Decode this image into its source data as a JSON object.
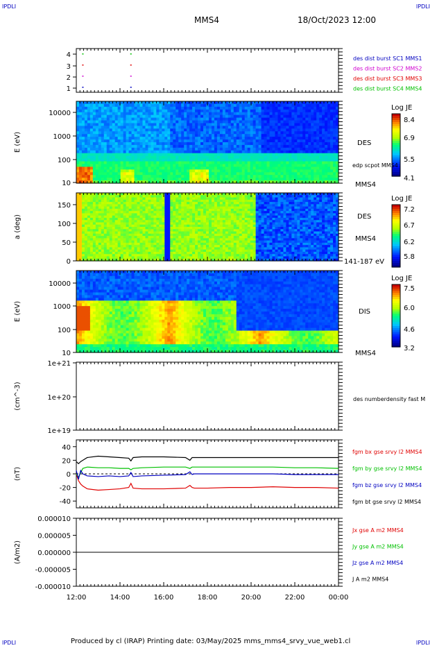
{
  "corner_label": "IPDLI",
  "header": {
    "mission": "MMS4",
    "datetime": "18/Oct/2023 12:00"
  },
  "footer": {
    "credit": "Produced by cl (IRAP)   Printing date: 03/May/2025   mms_mms4_srvy_vue_web1.cl"
  },
  "colors": {
    "red": "#e00000",
    "green": "#00c000",
    "blue": "#0000c0",
    "magenta": "#d000d0",
    "black": "#000000"
  },
  "chart_data": [
    {
      "type": "scatter",
      "name": "burst-availability",
      "yticks": [
        "1",
        "2",
        "3",
        "4"
      ],
      "legend": [
        {
          "label": "des dist burst SC1 MMS1",
          "color": "#0000c0"
        },
        {
          "label": "des dist burst SC2 MMS2",
          "color": "#d000d0"
        },
        {
          "label": "des dist burst SC3 MMS3",
          "color": "#e00000"
        },
        {
          "label": "des dist burst SC4 MMS4",
          "color": "#00c000"
        }
      ],
      "points_hours": [
        0.3,
        2.5
      ]
    },
    {
      "type": "heatmap",
      "name": "des-energy",
      "ylabel": "E (eV)",
      "yticks": [
        "10000",
        "1000",
        "100",
        "10"
      ],
      "yscale": "log",
      "ylim": [
        10,
        30000
      ],
      "right_labels": [
        "DES",
        "edp scpot MMS4",
        "MMS4"
      ],
      "colorbar": {
        "title": "Log JE",
        "ticks": [
          "8.4",
          "6.9",
          "5.5",
          "4.1"
        ]
      }
    },
    {
      "type": "heatmap",
      "name": "des-pitch-angle",
      "ylabel": "a (deg)",
      "yticks": [
        "150",
        "100",
        "50",
        "0"
      ],
      "ylim": [
        0,
        180
      ],
      "right_labels": [
        "DES",
        "MMS4",
        "141-187 eV"
      ],
      "colorbar": {
        "title": "Log JE",
        "ticks": [
          "7.2",
          "6.7",
          "6.2",
          "5.8"
        ]
      }
    },
    {
      "type": "heatmap",
      "name": "dis-energy",
      "ylabel": "E (eV)",
      "yticks": [
        "10000",
        "1000",
        "100",
        "10"
      ],
      "yscale": "log",
      "ylim": [
        10,
        30000
      ],
      "right_labels": [
        "DIS",
        "MMS4"
      ],
      "colorbar": {
        "title": "Log JE",
        "ticks": [
          "7.5",
          "6.0",
          "4.6",
          "3.2"
        ]
      }
    },
    {
      "type": "line",
      "name": "density",
      "ylabel": "(cm^-3)",
      "yticks": [
        "1e+21",
        "1e+20",
        "1e+19"
      ],
      "right_labels": [
        "des numberdensity fast M"
      ]
    },
    {
      "type": "line",
      "name": "magnetic-field",
      "ylabel": "(nT)",
      "yticks": [
        "40",
        "20",
        "0",
        "-20",
        "-40"
      ],
      "ylim": [
        -50,
        50
      ],
      "x_hours": [
        0,
        0.1,
        0.2,
        0.3,
        0.5,
        1,
        1.5,
        2,
        2.4,
        2.5,
        2.6,
        3,
        4,
        5,
        5.2,
        5.3,
        5.4,
        6,
        7,
        8,
        9,
        10,
        11,
        12
      ],
      "series": [
        {
          "name": "fgm bx gse srvy l2 MMS4",
          "color": "#e00000",
          "values": [
            0,
            -10,
            -15,
            -18,
            -22,
            -24,
            -23,
            -22,
            -20,
            -14,
            -21,
            -22,
            -22,
            -21,
            -17,
            -20,
            -21,
            -21,
            -20,
            -20,
            -19,
            -20,
            -20,
            -21
          ]
        },
        {
          "name": "fgm by gse srvy l2 MMS4",
          "color": "#00c000",
          "values": [
            0,
            -5,
            2,
            8,
            10,
            9,
            9,
            8,
            8,
            6,
            8,
            9,
            10,
            10,
            8,
            10,
            10,
            10,
            10,
            10,
            10,
            9,
            9,
            8
          ]
        },
        {
          "name": "fgm bz gse srvy l2 MMS4",
          "color": "#0000c0",
          "values": [
            5,
            -8,
            5,
            0,
            -3,
            -4,
            -3,
            -4,
            -3,
            2,
            -4,
            -3,
            -2,
            -1,
            3,
            -1,
            0,
            0,
            0,
            0,
            0,
            -1,
            -1,
            -1
          ]
        },
        {
          "name": "fgm bt gse srvy l2 MMS4",
          "color": "#000000",
          "values": [
            18,
            15,
            18,
            20,
            24,
            26,
            25,
            24,
            23,
            19,
            24,
            25,
            25,
            24,
            20,
            24,
            24,
            24,
            24,
            24,
            24,
            24,
            24,
            24
          ]
        }
      ]
    },
    {
      "type": "line",
      "name": "current-density",
      "ylabel": "(A/m2)",
      "yticks": [
        "0.000010",
        "0.000005",
        "0.000000",
        "-0.000005",
        "-0.000010"
      ],
      "ylim": [
        -1e-05,
        1e-05
      ],
      "right_labels": [
        "Jx gse A m2 MMS4",
        "Jy gse A m2 MMS4",
        "Jz gse A m2 MMS4",
        "J A m2 MMS4"
      ],
      "label_colors": [
        "#e00000",
        "#00c000",
        "#0000c0",
        "#000000"
      ]
    }
  ],
  "xaxis": {
    "ticks": [
      "12:00",
      "14:00",
      "16:00",
      "18:00",
      "20:00",
      "22:00",
      "00:00"
    ],
    "span_hours": 12
  }
}
